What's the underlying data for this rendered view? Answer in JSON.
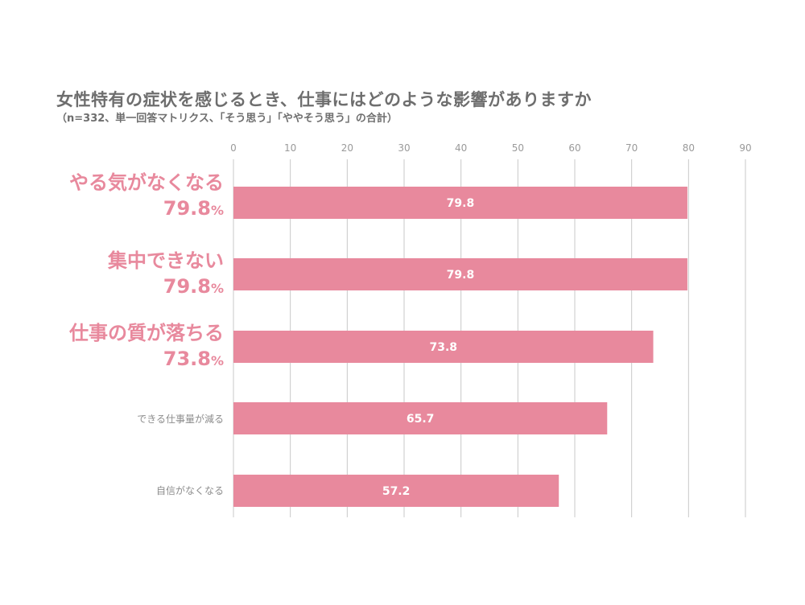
{
  "title": "女性特有の症状を感じるとき、仕事にはどのような影響がありますか",
  "subtitle": "（n=332、単一回答マトリクス、「そう思う」「ややそう思う」の合計）",
  "colors": {
    "bar": "#e8899d",
    "grid": "#c8c8c8",
    "tick": "#9a9a9a",
    "highlight_label": "#e8899d",
    "plain_label": "#8c8c8c",
    "bar_value": "#ffffff"
  },
  "highlights": [
    {
      "name": "やる気がなくなる",
      "value": "79.8",
      "unit": "%"
    },
    {
      "name": "集中できない",
      "value": "79.8",
      "unit": "%"
    },
    {
      "name": "仕事の質が落ちる",
      "value": "73.8",
      "unit": "%"
    }
  ],
  "plain_labels": [
    "できる仕事量が減る",
    "自信がなくなる"
  ],
  "chart_data": {
    "type": "bar",
    "orientation": "horizontal",
    "categories": [
      "やる気がなくなる",
      "集中できない",
      "仕事の質が落ちる",
      "できる仕事量が減る",
      "自信がなくなる"
    ],
    "values": [
      79.8,
      79.8,
      73.8,
      65.7,
      57.2
    ],
    "xlim": [
      0,
      90
    ],
    "xticks": [
      0,
      10,
      20,
      30,
      40,
      50,
      60,
      70,
      80,
      90
    ],
    "grid": true,
    "data_labels": [
      "79.8",
      "79.8",
      "73.8",
      "65.7",
      "57.2"
    ]
  }
}
